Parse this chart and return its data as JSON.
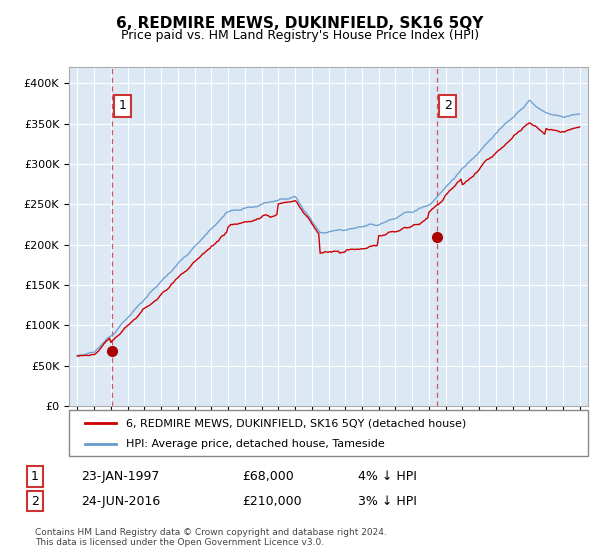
{
  "title": "6, REDMIRE MEWS, DUKINFIELD, SK16 5QY",
  "subtitle": "Price paid vs. HM Land Registry's House Price Index (HPI)",
  "plot_bg_color": "#dce9f5",
  "ylim": [
    0,
    420000
  ],
  "yticks": [
    0,
    50000,
    100000,
    150000,
    200000,
    250000,
    300000,
    350000,
    400000
  ],
  "ytick_labels": [
    "£0",
    "£50K",
    "£100K",
    "£150K",
    "£200K",
    "£250K",
    "£300K",
    "£350K",
    "£400K"
  ],
  "legend1_label": "6, REDMIRE MEWS, DUKINFIELD, SK16 5QY (detached house)",
  "legend2_label": "HPI: Average price, detached house, Tameside",
  "annotation1": {
    "num": "1",
    "date": "23-JAN-1997",
    "price": "£68,000",
    "pct": "4% ↓ HPI"
  },
  "annotation2": {
    "num": "2",
    "date": "24-JUN-2016",
    "price": "£210,000",
    "pct": "3% ↓ HPI"
  },
  "footnote": "Contains HM Land Registry data © Crown copyright and database right 2024.\nThis data is licensed under the Open Government Licence v3.0.",
  "line1_color": "#cc0000",
  "line2_color": "#6699cc",
  "vline_color": "#cc3333",
  "marker_color": "#aa0000",
  "sale1_year": 1997.06,
  "sale1_price": 68000,
  "sale2_year": 2016.48,
  "sale2_price": 210000,
  "grid_color": "#ffffff",
  "spine_color": "#aaaaaa"
}
